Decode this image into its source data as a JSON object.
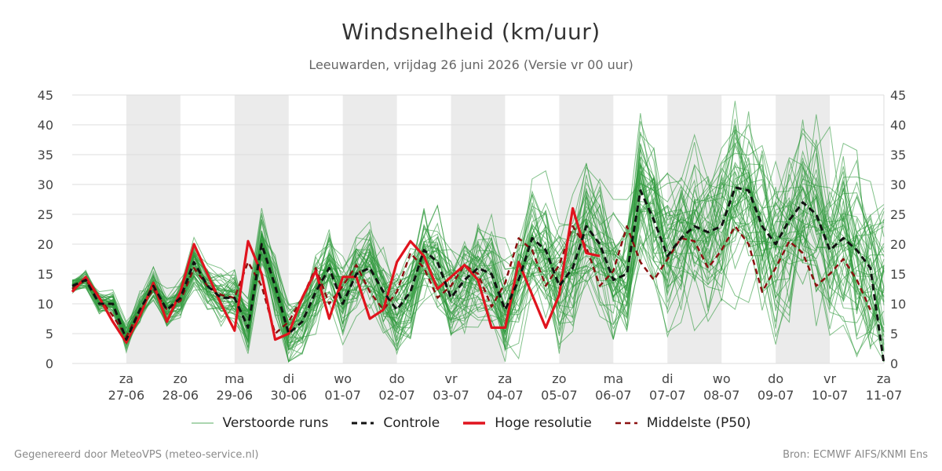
{
  "header": {
    "title": "Windsnelheid (km/uur)",
    "subtitle": "Leeuwarden, vrijdag 26 juni 2026 (Versie vr 00 uur)"
  },
  "footer": {
    "left": "Gegenereerd door MeteoVPS (meteo-service.nl)",
    "right": "Bron: ECMWF AIFS/KNMI Ens"
  },
  "colors": {
    "ensemble": "#2e9a3c",
    "controle": "#111111",
    "hoge_resolutie": "#e0141e",
    "p50": "#8b1010",
    "weekend_band": "#ebebeb",
    "grid": "#dddddd"
  },
  "chart_data": {
    "type": "line",
    "title": "Windsnelheid (km/uur)",
    "ylim": [
      0,
      45
    ],
    "yticks": [
      0,
      5,
      10,
      15,
      20,
      25,
      30,
      35,
      40,
      45
    ],
    "y_axis_both_sides": true,
    "grid": true,
    "legend_position": "bottom",
    "x_start": "2026-06-26 00:00",
    "x_end": "2026-07-11 00:00",
    "x_ticks": [
      {
        "day": "za",
        "date": "27-06"
      },
      {
        "day": "zo",
        "date": "28-06"
      },
      {
        "day": "ma",
        "date": "29-06"
      },
      {
        "day": "di",
        "date": "30-06"
      },
      {
        "day": "wo",
        "date": "01-07"
      },
      {
        "day": "do",
        "date": "02-07"
      },
      {
        "day": "vr",
        "date": "03-07"
      },
      {
        "day": "za",
        "date": "04-07"
      },
      {
        "day": "zo",
        "date": "05-07"
      },
      {
        "day": "ma",
        "date": "06-07"
      },
      {
        "day": "di",
        "date": "07-07"
      },
      {
        "day": "wo",
        "date": "08-07"
      },
      {
        "day": "do",
        "date": "09-07"
      },
      {
        "day": "vr",
        "date": "10-07"
      },
      {
        "day": "za",
        "date": "11-07"
      }
    ],
    "shaded_intervals": [
      [
        "2026-06-27",
        "2026-06-28"
      ],
      [
        "2026-06-29",
        "2026-06-30"
      ],
      [
        "2026-07-01",
        "2026-07-02"
      ],
      [
        "2026-07-03",
        "2026-07-04"
      ],
      [
        "2026-07-05",
        "2026-07-06"
      ],
      [
        "2026-07-07",
        "2026-07-08"
      ],
      [
        "2026-07-09",
        "2026-07-10"
      ]
    ],
    "x_times": [
      "2026-06-26 00:00",
      "2026-06-26 06:00",
      "2026-06-26 12:00",
      "2026-06-26 18:00",
      "2026-06-27 00:00",
      "2026-06-27 06:00",
      "2026-06-27 12:00",
      "2026-06-27 18:00",
      "2026-06-28 00:00",
      "2026-06-28 06:00",
      "2026-06-28 12:00",
      "2026-06-28 18:00",
      "2026-06-29 00:00",
      "2026-06-29 06:00",
      "2026-06-29 12:00",
      "2026-06-29 18:00",
      "2026-06-30 00:00",
      "2026-06-30 06:00",
      "2026-06-30 12:00",
      "2026-06-30 18:00",
      "2026-07-01 00:00",
      "2026-07-01 06:00",
      "2026-07-01 12:00",
      "2026-07-01 18:00",
      "2026-07-02 00:00",
      "2026-07-02 06:00",
      "2026-07-02 12:00",
      "2026-07-02 18:00",
      "2026-07-03 00:00",
      "2026-07-03 06:00",
      "2026-07-03 12:00",
      "2026-07-03 18:00",
      "2026-07-04 00:00",
      "2026-07-04 06:00",
      "2026-07-04 12:00",
      "2026-07-04 18:00",
      "2026-07-05 00:00",
      "2026-07-05 06:00",
      "2026-07-05 12:00",
      "2026-07-05 18:00",
      "2026-07-06 00:00",
      "2026-07-06 06:00",
      "2026-07-06 12:00",
      "2026-07-06 18:00",
      "2026-07-07 00:00",
      "2026-07-07 06:00",
      "2026-07-07 12:00",
      "2026-07-07 18:00",
      "2026-07-08 00:00",
      "2026-07-08 06:00",
      "2026-07-08 12:00",
      "2026-07-08 18:00",
      "2026-07-09 00:00",
      "2026-07-09 06:00",
      "2026-07-09 12:00",
      "2026-07-09 18:00",
      "2026-07-10 00:00",
      "2026-07-10 06:00",
      "2026-07-10 12:00",
      "2026-07-10 18:00",
      "2026-07-11 00:00"
    ],
    "series": [
      {
        "name": "Controle",
        "style": "dashed",
        "values": [
          13,
          14,
          10,
          10,
          4,
          9,
          13,
          9,
          11,
          17,
          13,
          11,
          11,
          6,
          20,
          13,
          5,
          7,
          12,
          16,
          10,
          15,
          16,
          12,
          9,
          12,
          19,
          17,
          11,
          14,
          16,
          15,
          9,
          14,
          21,
          19,
          13,
          16,
          23,
          20,
          14,
          15,
          29,
          24,
          18,
          21,
          23,
          22,
          23,
          29.5,
          29,
          23,
          20,
          24,
          27,
          25,
          19,
          21,
          19,
          16,
          0
        ]
      },
      {
        "name": "Hoge resolutie",
        "style": "solid",
        "values": [
          12,
          14.5,
          11,
          7,
          3.5,
          8,
          13.5,
          7,
          12,
          20,
          15,
          10,
          5.5,
          20.5,
          15,
          4,
          5,
          11,
          15.5,
          7.5,
          14.5,
          14.5,
          7.5,
          9,
          17,
          20.5,
          18,
          12.5,
          14.5,
          16.5,
          14,
          6,
          6,
          17,
          11.5,
          6,
          11.5,
          26,
          18.5,
          18
        ]
      },
      {
        "name": "Middelste (P50)",
        "style": "dashed",
        "values": [
          12.5,
          14,
          11,
          8,
          4.5,
          9,
          12.5,
          9,
          10.5,
          16,
          13,
          11.5,
          11,
          17,
          13,
          5,
          7,
          11,
          16,
          10,
          13,
          16.5,
          12,
          9,
          12,
          18.5,
          16,
          11,
          13,
          16.5,
          15,
          9.5,
          13.5,
          21,
          19,
          13,
          16.5,
          23,
          19.5,
          13,
          15.5,
          23,
          17,
          14,
          17.5,
          21,
          20.5,
          16,
          19,
          23,
          20,
          12,
          16,
          20.5,
          18.5,
          13,
          15,
          17.5,
          14,
          9,
          null
        ]
      }
    ],
    "ensemble_series": {
      "name": "Verstoorde runs",
      "members": 50
    }
  },
  "legend": [
    {
      "label": "Verstoorde runs"
    },
    {
      "label": "Controle"
    },
    {
      "label": "Hoge resolutie"
    },
    {
      "label": "Middelste (P50)"
    }
  ]
}
